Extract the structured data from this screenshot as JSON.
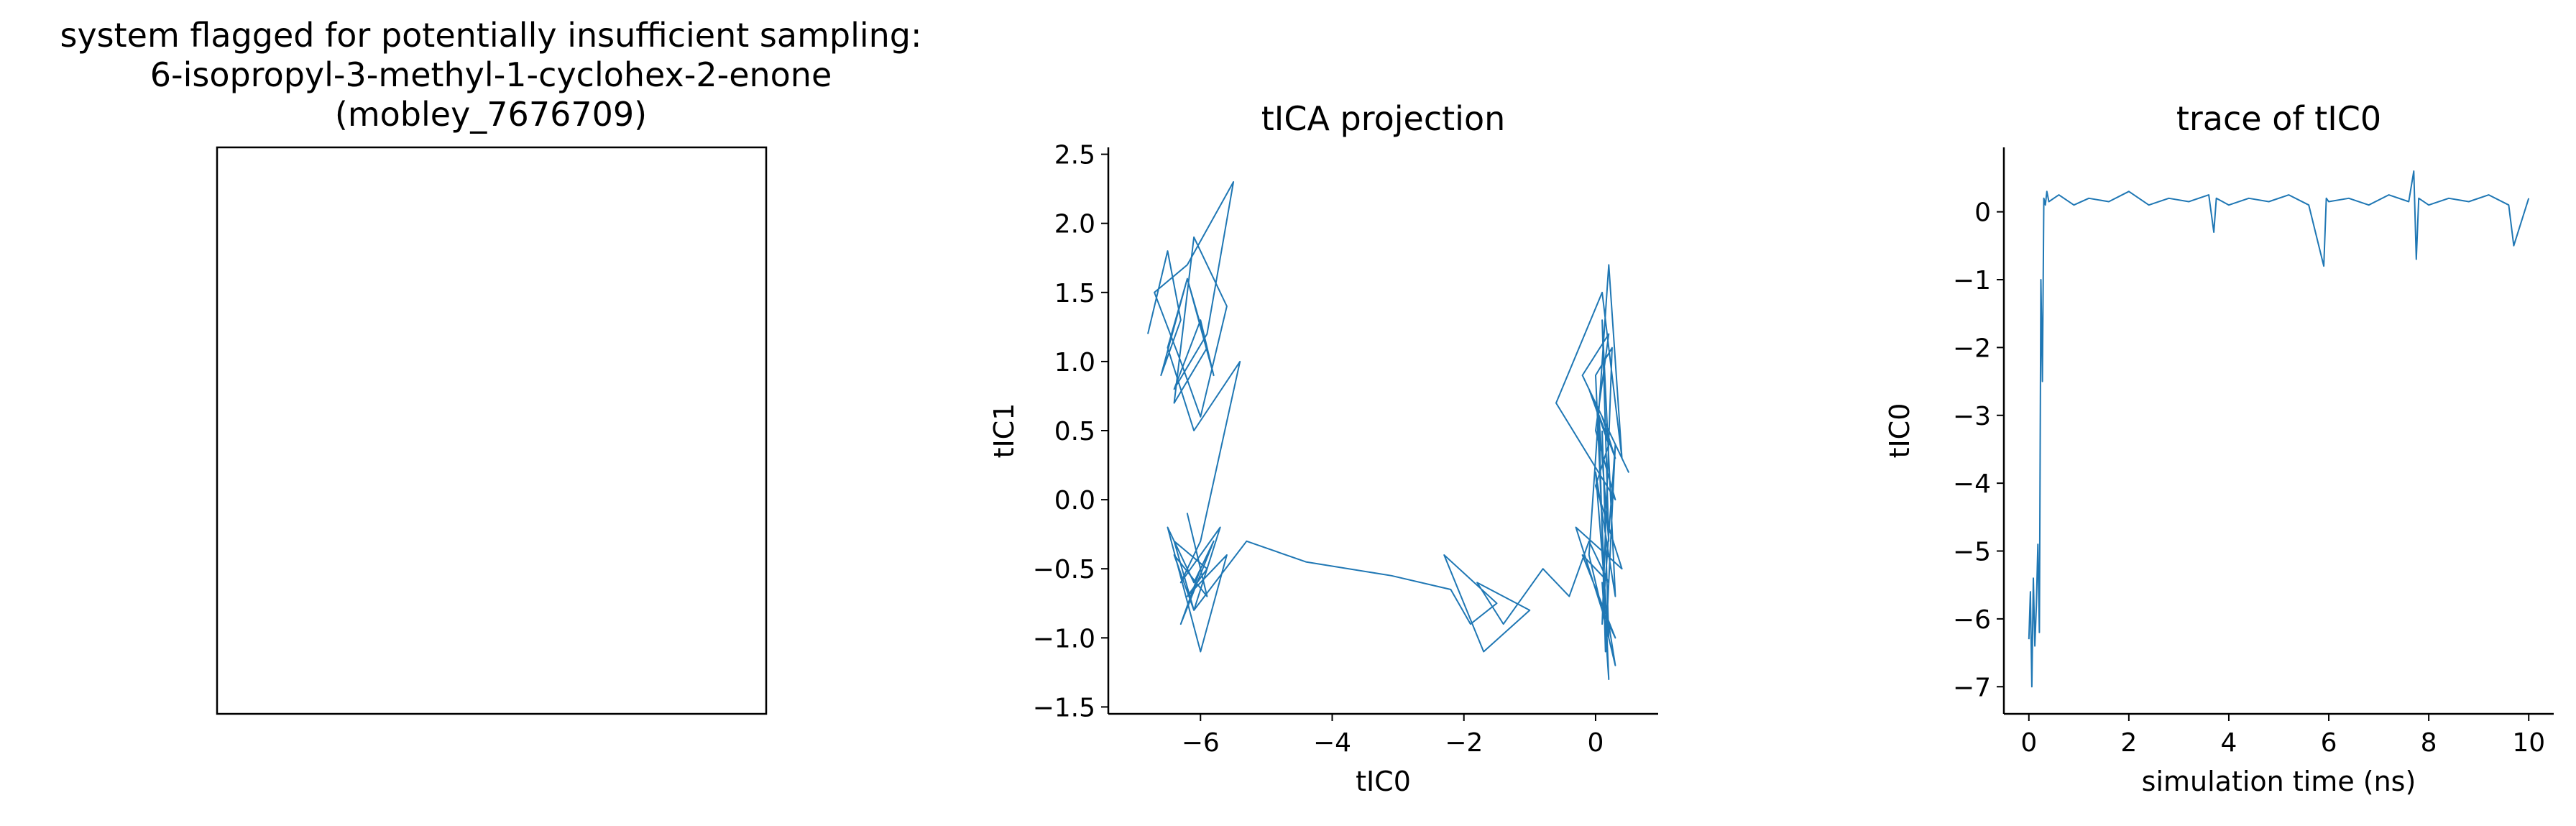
{
  "panel_left": {
    "title_lines": [
      "system flagged for potentially insufficient sampling:",
      "6-isopropyl-3-methyl-1-cyclohex-2-enone",
      "(mobley_7676709)"
    ]
  },
  "colors": {
    "series": "#1f77b4",
    "axis": "#000000"
  },
  "chart_data": [
    {
      "type": "line",
      "title": "tICA projection",
      "xlabel": "tIC0",
      "ylabel": "tIC1",
      "xlim": [
        -7.4,
        0.95
      ],
      "ylim": [
        -1.55,
        2.55
      ],
      "xticks": [
        -6,
        -4,
        -2,
        0
      ],
      "xtick_labels": [
        "−6",
        "−4",
        "−2",
        "0"
      ],
      "yticks": [
        -1.5,
        -1.0,
        -0.5,
        0.0,
        0.5,
        1.0,
        1.5,
        2.0,
        2.5
      ],
      "ytick_labels": [
        "−1.5",
        "−1.0",
        "−0.5",
        "0.0",
        "0.5",
        "1.0",
        "1.5",
        "2.0",
        "2.5"
      ],
      "grid": false,
      "series": [
        {
          "x": [
            -6.8,
            -6.5,
            -6.3,
            -6.6,
            -6.2,
            -5.9,
            -6.4,
            -6.1,
            -5.6,
            -6.0,
            -6.3,
            -6.7,
            -6.2,
            -5.5,
            -5.9,
            -6.4,
            -6.0,
            -5.8,
            -6.2,
            -6.5,
            -6.1,
            -5.4,
            -6.0,
            -6.3,
            -5.7,
            -6.1,
            -6.4,
            -5.9,
            -6.2,
            -6.0,
            -6.3,
            -5.8,
            -6.1,
            -6.5,
            -6.0,
            -5.6,
            -6.2,
            -5.9,
            -6.4,
            -6.1,
            -5.3,
            -4.4,
            -3.1,
            -2.2,
            -1.9,
            -1.5,
            -2.3,
            -1.7,
            -1.0,
            -1.8,
            -1.4,
            -0.8,
            -0.4,
            -0.1,
            0.2,
            -0.2,
            0.3,
            0.1,
            -0.3,
            0.4,
            0.0,
            0.2,
            -0.1,
            0.3,
            0.1,
            0.5,
            -0.2,
            0.2,
            0.0,
            0.3,
            -0.6,
            0.1,
            0.4,
            0.2,
            -0.1,
            0.3,
            0.1,
            0.2,
            0.0,
            0.25,
            0.1,
            0.3,
            0.15,
            0.05,
            0.2,
            0.1,
            0.3,
            0.0,
            0.2,
            0.1
          ],
          "y": [
            1.2,
            1.8,
            1.3,
            0.9,
            1.6,
            1.1,
            0.7,
            1.9,
            1.4,
            0.6,
            1.0,
            1.5,
            1.7,
            2.3,
            1.2,
            0.8,
            1.3,
            0.9,
            1.6,
            1.1,
            0.5,
            1.0,
            -0.3,
            -0.6,
            -0.2,
            -0.8,
            -0.4,
            -0.7,
            -0.1,
            -0.5,
            -0.9,
            -0.3,
            -0.6,
            -0.2,
            -1.1,
            -0.4,
            -0.7,
            -0.5,
            -0.3,
            -0.8,
            -0.3,
            -0.45,
            -0.55,
            -0.65,
            -0.9,
            -0.75,
            -0.4,
            -1.1,
            -0.8,
            -0.6,
            -0.9,
            -0.5,
            -0.7,
            -0.3,
            -0.6,
            -0.4,
            -1.0,
            -0.8,
            -0.2,
            -0.5,
            0.1,
            0.4,
            0.8,
            0.3,
            0.6,
            0.2,
            0.9,
            1.2,
            0.5,
            0.0,
            0.7,
            1.5,
            0.3,
            1.7,
            -0.4,
            -1.2,
            -0.6,
            -1.3,
            0.9,
            1.1,
            -0.9,
            0.4,
            -1.1,
            0.6,
            -0.3,
            1.3,
            -0.7,
            0.2,
            -1.0,
            0.5
          ]
        }
      ]
    },
    {
      "type": "line",
      "title": "trace of tIC0",
      "xlabel": "simulation time (ns)",
      "ylabel": "tIC0",
      "xlim": [
        -0.5,
        10.5
      ],
      "ylim": [
        -7.4,
        0.95
      ],
      "xticks": [
        0,
        2,
        4,
        6,
        8,
        10
      ],
      "xtick_labels": [
        "0",
        "2",
        "4",
        "6",
        "8",
        "10"
      ],
      "yticks": [
        -7,
        -6,
        -5,
        -4,
        -3,
        -2,
        -1,
        0
      ],
      "ytick_labels": [
        "−7",
        "−6",
        "−5",
        "−4",
        "−3",
        "−2",
        "−1",
        "0"
      ],
      "grid": false,
      "series": [
        {
          "x": [
            0.0,
            0.03,
            0.06,
            0.09,
            0.12,
            0.15,
            0.18,
            0.21,
            0.24,
            0.27,
            0.3,
            0.33,
            0.36,
            0.4,
            0.6,
            0.9,
            1.2,
            1.6,
            2.0,
            2.4,
            2.8,
            3.2,
            3.6,
            3.7,
            3.75,
            4.0,
            4.4,
            4.8,
            5.2,
            5.6,
            5.9,
            5.95,
            6.0,
            6.4,
            6.8,
            7.2,
            7.6,
            7.7,
            7.75,
            7.8,
            8.0,
            8.4,
            8.8,
            9.2,
            9.6,
            9.7,
            10.0
          ],
          "y": [
            -6.3,
            -5.6,
            -7.0,
            -5.4,
            -6.4,
            -5.8,
            -4.9,
            -6.2,
            -1.0,
            -2.5,
            0.2,
            0.1,
            0.3,
            0.15,
            0.25,
            0.1,
            0.2,
            0.15,
            0.3,
            0.1,
            0.2,
            0.15,
            0.25,
            -0.3,
            0.2,
            0.1,
            0.2,
            0.15,
            0.25,
            0.1,
            -0.8,
            0.2,
            0.15,
            0.2,
            0.1,
            0.25,
            0.15,
            0.6,
            -0.7,
            0.2,
            0.1,
            0.2,
            0.15,
            0.25,
            0.1,
            -0.5,
            0.2
          ]
        }
      ]
    }
  ]
}
